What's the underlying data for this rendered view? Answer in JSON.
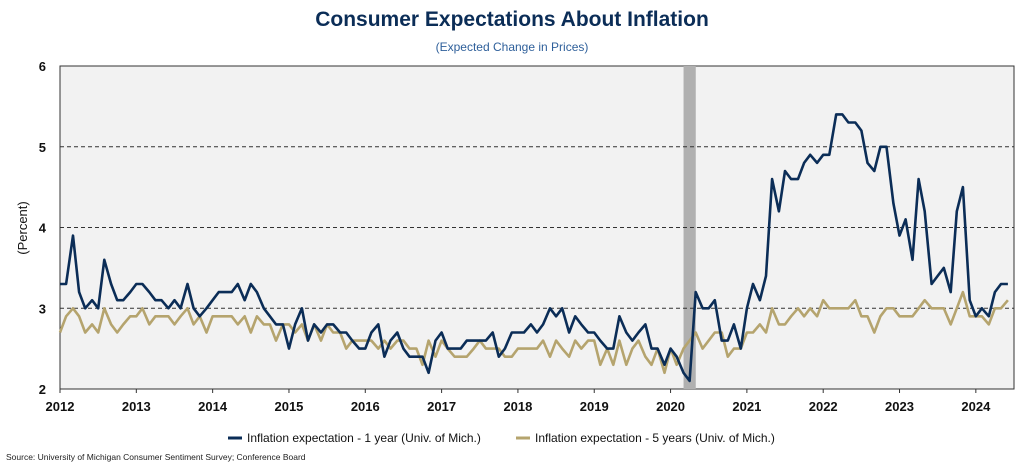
{
  "chart_data": {
    "type": "line",
    "title": "Consumer Expectations About Inflation",
    "subtitle": "(Expected Change in Prices)",
    "ylabel": "(Percent)",
    "xlabel": "",
    "ylim": [
      2,
      6
    ],
    "yticks": [
      "2",
      "3",
      "4",
      "5",
      "6"
    ],
    "xlim": [
      2012.0,
      2024.5
    ],
    "xticks": [
      "2012",
      "2013",
      "2014",
      "2015",
      "2016",
      "2017",
      "2018",
      "2019",
      "2020",
      "2021",
      "2022",
      "2023",
      "2024"
    ],
    "grid": "horizontal-dashed",
    "legend_position": "bottom",
    "recession_shading": [
      2020.17,
      2020.33
    ],
    "colors": {
      "one_year": "#0b2d57",
      "five_year": "#b5a46e",
      "shade": "#b0b0b0",
      "plot_bg": "#f2f2f2"
    },
    "series": [
      {
        "name": "Inflation expectation - 1 year (Univ. of Mich.)",
        "key": "one_year",
        "points": [
          [
            2012.0,
            3.3
          ],
          [
            2012.08,
            3.3
          ],
          [
            2012.17,
            3.9
          ],
          [
            2012.25,
            3.2
          ],
          [
            2012.33,
            3.0
          ],
          [
            2012.42,
            3.1
          ],
          [
            2012.5,
            3.0
          ],
          [
            2012.58,
            3.6
          ],
          [
            2012.67,
            3.3
          ],
          [
            2012.75,
            3.1
          ],
          [
            2012.83,
            3.1
          ],
          [
            2012.92,
            3.2
          ],
          [
            2013.0,
            3.3
          ],
          [
            2013.08,
            3.3
          ],
          [
            2013.17,
            3.2
          ],
          [
            2013.25,
            3.1
          ],
          [
            2013.33,
            3.1
          ],
          [
            2013.42,
            3.0
          ],
          [
            2013.5,
            3.1
          ],
          [
            2013.58,
            3.0
          ],
          [
            2013.67,
            3.3
          ],
          [
            2013.75,
            3.0
          ],
          [
            2013.83,
            2.9
          ],
          [
            2013.92,
            3.0
          ],
          [
            2014.0,
            3.1
          ],
          [
            2014.08,
            3.2
          ],
          [
            2014.17,
            3.2
          ],
          [
            2014.25,
            3.2
          ],
          [
            2014.33,
            3.3
          ],
          [
            2014.42,
            3.1
          ],
          [
            2014.5,
            3.3
          ],
          [
            2014.58,
            3.2
          ],
          [
            2014.67,
            3.0
          ],
          [
            2014.75,
            2.9
          ],
          [
            2014.83,
            2.8
          ],
          [
            2014.92,
            2.8
          ],
          [
            2015.0,
            2.5
          ],
          [
            2015.08,
            2.8
          ],
          [
            2015.17,
            3.0
          ],
          [
            2015.25,
            2.6
          ],
          [
            2015.33,
            2.8
          ],
          [
            2015.42,
            2.7
          ],
          [
            2015.5,
            2.8
          ],
          [
            2015.58,
            2.8
          ],
          [
            2015.67,
            2.7
          ],
          [
            2015.75,
            2.7
          ],
          [
            2015.83,
            2.6
          ],
          [
            2015.92,
            2.5
          ],
          [
            2016.0,
            2.5
          ],
          [
            2016.08,
            2.7
          ],
          [
            2016.17,
            2.8
          ],
          [
            2016.25,
            2.4
          ],
          [
            2016.33,
            2.6
          ],
          [
            2016.42,
            2.7
          ],
          [
            2016.5,
            2.5
          ],
          [
            2016.58,
            2.4
          ],
          [
            2016.67,
            2.4
          ],
          [
            2016.75,
            2.4
          ],
          [
            2016.83,
            2.2
          ],
          [
            2016.92,
            2.6
          ],
          [
            2017.0,
            2.7
          ],
          [
            2017.08,
            2.5
          ],
          [
            2017.17,
            2.5
          ],
          [
            2017.25,
            2.5
          ],
          [
            2017.33,
            2.6
          ],
          [
            2017.42,
            2.6
          ],
          [
            2017.5,
            2.6
          ],
          [
            2017.58,
            2.6
          ],
          [
            2017.67,
            2.7
          ],
          [
            2017.75,
            2.4
          ],
          [
            2017.83,
            2.5
          ],
          [
            2017.92,
            2.7
          ],
          [
            2018.0,
            2.7
          ],
          [
            2018.08,
            2.7
          ],
          [
            2018.17,
            2.8
          ],
          [
            2018.25,
            2.7
          ],
          [
            2018.33,
            2.8
          ],
          [
            2018.42,
            3.0
          ],
          [
            2018.5,
            2.9
          ],
          [
            2018.58,
            3.0
          ],
          [
            2018.67,
            2.7
          ],
          [
            2018.75,
            2.9
          ],
          [
            2018.83,
            2.8
          ],
          [
            2018.92,
            2.7
          ],
          [
            2019.0,
            2.7
          ],
          [
            2019.08,
            2.6
          ],
          [
            2019.17,
            2.5
          ],
          [
            2019.25,
            2.5
          ],
          [
            2019.33,
            2.9
          ],
          [
            2019.42,
            2.7
          ],
          [
            2019.5,
            2.6
          ],
          [
            2019.58,
            2.7
          ],
          [
            2019.67,
            2.8
          ],
          [
            2019.75,
            2.5
          ],
          [
            2019.83,
            2.5
          ],
          [
            2019.92,
            2.3
          ],
          [
            2020.0,
            2.5
          ],
          [
            2020.08,
            2.4
          ],
          [
            2020.17,
            2.2
          ],
          [
            2020.25,
            2.1
          ],
          [
            2020.33,
            3.2
          ],
          [
            2020.42,
            3.0
          ],
          [
            2020.5,
            3.0
          ],
          [
            2020.58,
            3.1
          ],
          [
            2020.67,
            2.6
          ],
          [
            2020.75,
            2.6
          ],
          [
            2020.83,
            2.8
          ],
          [
            2020.92,
            2.5
          ],
          [
            2021.0,
            3.0
          ],
          [
            2021.08,
            3.3
          ],
          [
            2021.17,
            3.1
          ],
          [
            2021.25,
            3.4
          ],
          [
            2021.33,
            4.6
          ],
          [
            2021.42,
            4.2
          ],
          [
            2021.5,
            4.7
          ],
          [
            2021.58,
            4.6
          ],
          [
            2021.67,
            4.6
          ],
          [
            2021.75,
            4.8
          ],
          [
            2021.83,
            4.9
          ],
          [
            2021.92,
            4.8
          ],
          [
            2022.0,
            4.9
          ],
          [
            2022.08,
            4.9
          ],
          [
            2022.17,
            5.4
          ],
          [
            2022.25,
            5.4
          ],
          [
            2022.33,
            5.3
          ],
          [
            2022.42,
            5.3
          ],
          [
            2022.5,
            5.2
          ],
          [
            2022.58,
            4.8
          ],
          [
            2022.67,
            4.7
          ],
          [
            2022.75,
            5.0
          ],
          [
            2022.83,
            5.0
          ],
          [
            2022.92,
            4.3
          ],
          [
            2023.0,
            3.9
          ],
          [
            2023.08,
            4.1
          ],
          [
            2023.17,
            3.6
          ],
          [
            2023.25,
            4.6
          ],
          [
            2023.33,
            4.2
          ],
          [
            2023.42,
            3.3
          ],
          [
            2023.5,
            3.4
          ],
          [
            2023.58,
            3.5
          ],
          [
            2023.67,
            3.2
          ],
          [
            2023.75,
            4.2
          ],
          [
            2023.83,
            4.5
          ],
          [
            2023.92,
            3.1
          ],
          [
            2024.0,
            2.9
          ],
          [
            2024.08,
            3.0
          ],
          [
            2024.17,
            2.9
          ],
          [
            2024.25,
            3.2
          ],
          [
            2024.33,
            3.3
          ],
          [
            2024.42,
            3.3
          ]
        ]
      },
      {
        "name": "Inflation expectation - 5 years (Univ. of Mich.)",
        "key": "five_year",
        "points": [
          [
            2012.0,
            2.7
          ],
          [
            2012.08,
            2.9
          ],
          [
            2012.17,
            3.0
          ],
          [
            2012.25,
            2.9
          ],
          [
            2012.33,
            2.7
          ],
          [
            2012.42,
            2.8
          ],
          [
            2012.5,
            2.7
          ],
          [
            2012.58,
            3.0
          ],
          [
            2012.67,
            2.8
          ],
          [
            2012.75,
            2.7
          ],
          [
            2012.83,
            2.8
          ],
          [
            2012.92,
            2.9
          ],
          [
            2013.0,
            2.9
          ],
          [
            2013.08,
            3.0
          ],
          [
            2013.17,
            2.8
          ],
          [
            2013.25,
            2.9
          ],
          [
            2013.33,
            2.9
          ],
          [
            2013.42,
            2.9
          ],
          [
            2013.5,
            2.8
          ],
          [
            2013.58,
            2.9
          ],
          [
            2013.67,
            3.0
          ],
          [
            2013.75,
            2.8
          ],
          [
            2013.83,
            2.9
          ],
          [
            2013.92,
            2.7
          ],
          [
            2014.0,
            2.9
          ],
          [
            2014.08,
            2.9
          ],
          [
            2014.17,
            2.9
          ],
          [
            2014.25,
            2.9
          ],
          [
            2014.33,
            2.8
          ],
          [
            2014.42,
            2.9
          ],
          [
            2014.5,
            2.7
          ],
          [
            2014.58,
            2.9
          ],
          [
            2014.67,
            2.8
          ],
          [
            2014.75,
            2.8
          ],
          [
            2014.83,
            2.6
          ],
          [
            2014.92,
            2.8
          ],
          [
            2015.0,
            2.8
          ],
          [
            2015.08,
            2.7
          ],
          [
            2015.17,
            2.8
          ],
          [
            2015.25,
            2.6
          ],
          [
            2015.33,
            2.8
          ],
          [
            2015.42,
            2.6
          ],
          [
            2015.5,
            2.8
          ],
          [
            2015.58,
            2.7
          ],
          [
            2015.67,
            2.7
          ],
          [
            2015.75,
            2.5
          ],
          [
            2015.83,
            2.6
          ],
          [
            2015.92,
            2.6
          ],
          [
            2016.0,
            2.6
          ],
          [
            2016.08,
            2.6
          ],
          [
            2016.17,
            2.5
          ],
          [
            2016.25,
            2.6
          ],
          [
            2016.33,
            2.5
          ],
          [
            2016.42,
            2.6
          ],
          [
            2016.5,
            2.6
          ],
          [
            2016.58,
            2.5
          ],
          [
            2016.67,
            2.5
          ],
          [
            2016.75,
            2.3
          ],
          [
            2016.83,
            2.6
          ],
          [
            2016.92,
            2.4
          ],
          [
            2017.0,
            2.6
          ],
          [
            2017.08,
            2.5
          ],
          [
            2017.17,
            2.4
          ],
          [
            2017.25,
            2.4
          ],
          [
            2017.33,
            2.4
          ],
          [
            2017.42,
            2.5
          ],
          [
            2017.5,
            2.6
          ],
          [
            2017.58,
            2.5
          ],
          [
            2017.67,
            2.5
          ],
          [
            2017.75,
            2.5
          ],
          [
            2017.83,
            2.4
          ],
          [
            2017.92,
            2.4
          ],
          [
            2018.0,
            2.5
          ],
          [
            2018.08,
            2.5
          ],
          [
            2018.17,
            2.5
          ],
          [
            2018.25,
            2.5
          ],
          [
            2018.33,
            2.6
          ],
          [
            2018.42,
            2.4
          ],
          [
            2018.5,
            2.6
          ],
          [
            2018.58,
            2.5
          ],
          [
            2018.67,
            2.4
          ],
          [
            2018.75,
            2.6
          ],
          [
            2018.83,
            2.5
          ],
          [
            2018.92,
            2.6
          ],
          [
            2019.0,
            2.6
          ],
          [
            2019.08,
            2.3
          ],
          [
            2019.17,
            2.5
          ],
          [
            2019.25,
            2.3
          ],
          [
            2019.33,
            2.6
          ],
          [
            2019.42,
            2.3
          ],
          [
            2019.5,
            2.5
          ],
          [
            2019.58,
            2.6
          ],
          [
            2019.67,
            2.4
          ],
          [
            2019.75,
            2.3
          ],
          [
            2019.83,
            2.5
          ],
          [
            2019.92,
            2.2
          ],
          [
            2020.0,
            2.5
          ],
          [
            2020.08,
            2.3
          ],
          [
            2020.17,
            2.5
          ],
          [
            2020.25,
            2.6
          ],
          [
            2020.33,
            2.7
          ],
          [
            2020.42,
            2.5
          ],
          [
            2020.5,
            2.6
          ],
          [
            2020.58,
            2.7
          ],
          [
            2020.67,
            2.7
          ],
          [
            2020.75,
            2.4
          ],
          [
            2020.83,
            2.5
          ],
          [
            2020.92,
            2.5
          ],
          [
            2021.0,
            2.7
          ],
          [
            2021.08,
            2.7
          ],
          [
            2021.17,
            2.8
          ],
          [
            2021.25,
            2.7
          ],
          [
            2021.33,
            3.0
          ],
          [
            2021.42,
            2.8
          ],
          [
            2021.5,
            2.8
          ],
          [
            2021.58,
            2.9
          ],
          [
            2021.67,
            3.0
          ],
          [
            2021.75,
            2.9
          ],
          [
            2021.83,
            3.0
          ],
          [
            2021.92,
            2.9
          ],
          [
            2022.0,
            3.1
          ],
          [
            2022.08,
            3.0
          ],
          [
            2022.17,
            3.0
          ],
          [
            2022.25,
            3.0
          ],
          [
            2022.33,
            3.0
          ],
          [
            2022.42,
            3.1
          ],
          [
            2022.5,
            2.9
          ],
          [
            2022.58,
            2.9
          ],
          [
            2022.67,
            2.7
          ],
          [
            2022.75,
            2.9
          ],
          [
            2022.83,
            3.0
          ],
          [
            2022.92,
            3.0
          ],
          [
            2023.0,
            2.9
          ],
          [
            2023.08,
            2.9
          ],
          [
            2023.17,
            2.9
          ],
          [
            2023.25,
            3.0
          ],
          [
            2023.33,
            3.1
          ],
          [
            2023.42,
            3.0
          ],
          [
            2023.5,
            3.0
          ],
          [
            2023.58,
            3.0
          ],
          [
            2023.67,
            2.8
          ],
          [
            2023.75,
            3.0
          ],
          [
            2023.83,
            3.2
          ],
          [
            2023.92,
            2.9
          ],
          [
            2024.0,
            2.9
          ],
          [
            2024.08,
            2.9
          ],
          [
            2024.17,
            2.8
          ],
          [
            2024.25,
            3.0
          ],
          [
            2024.33,
            3.0
          ],
          [
            2024.42,
            3.1
          ]
        ]
      }
    ]
  },
  "source": "Source: University of Michigan Consumer Sentiment Survey; Conference Board"
}
